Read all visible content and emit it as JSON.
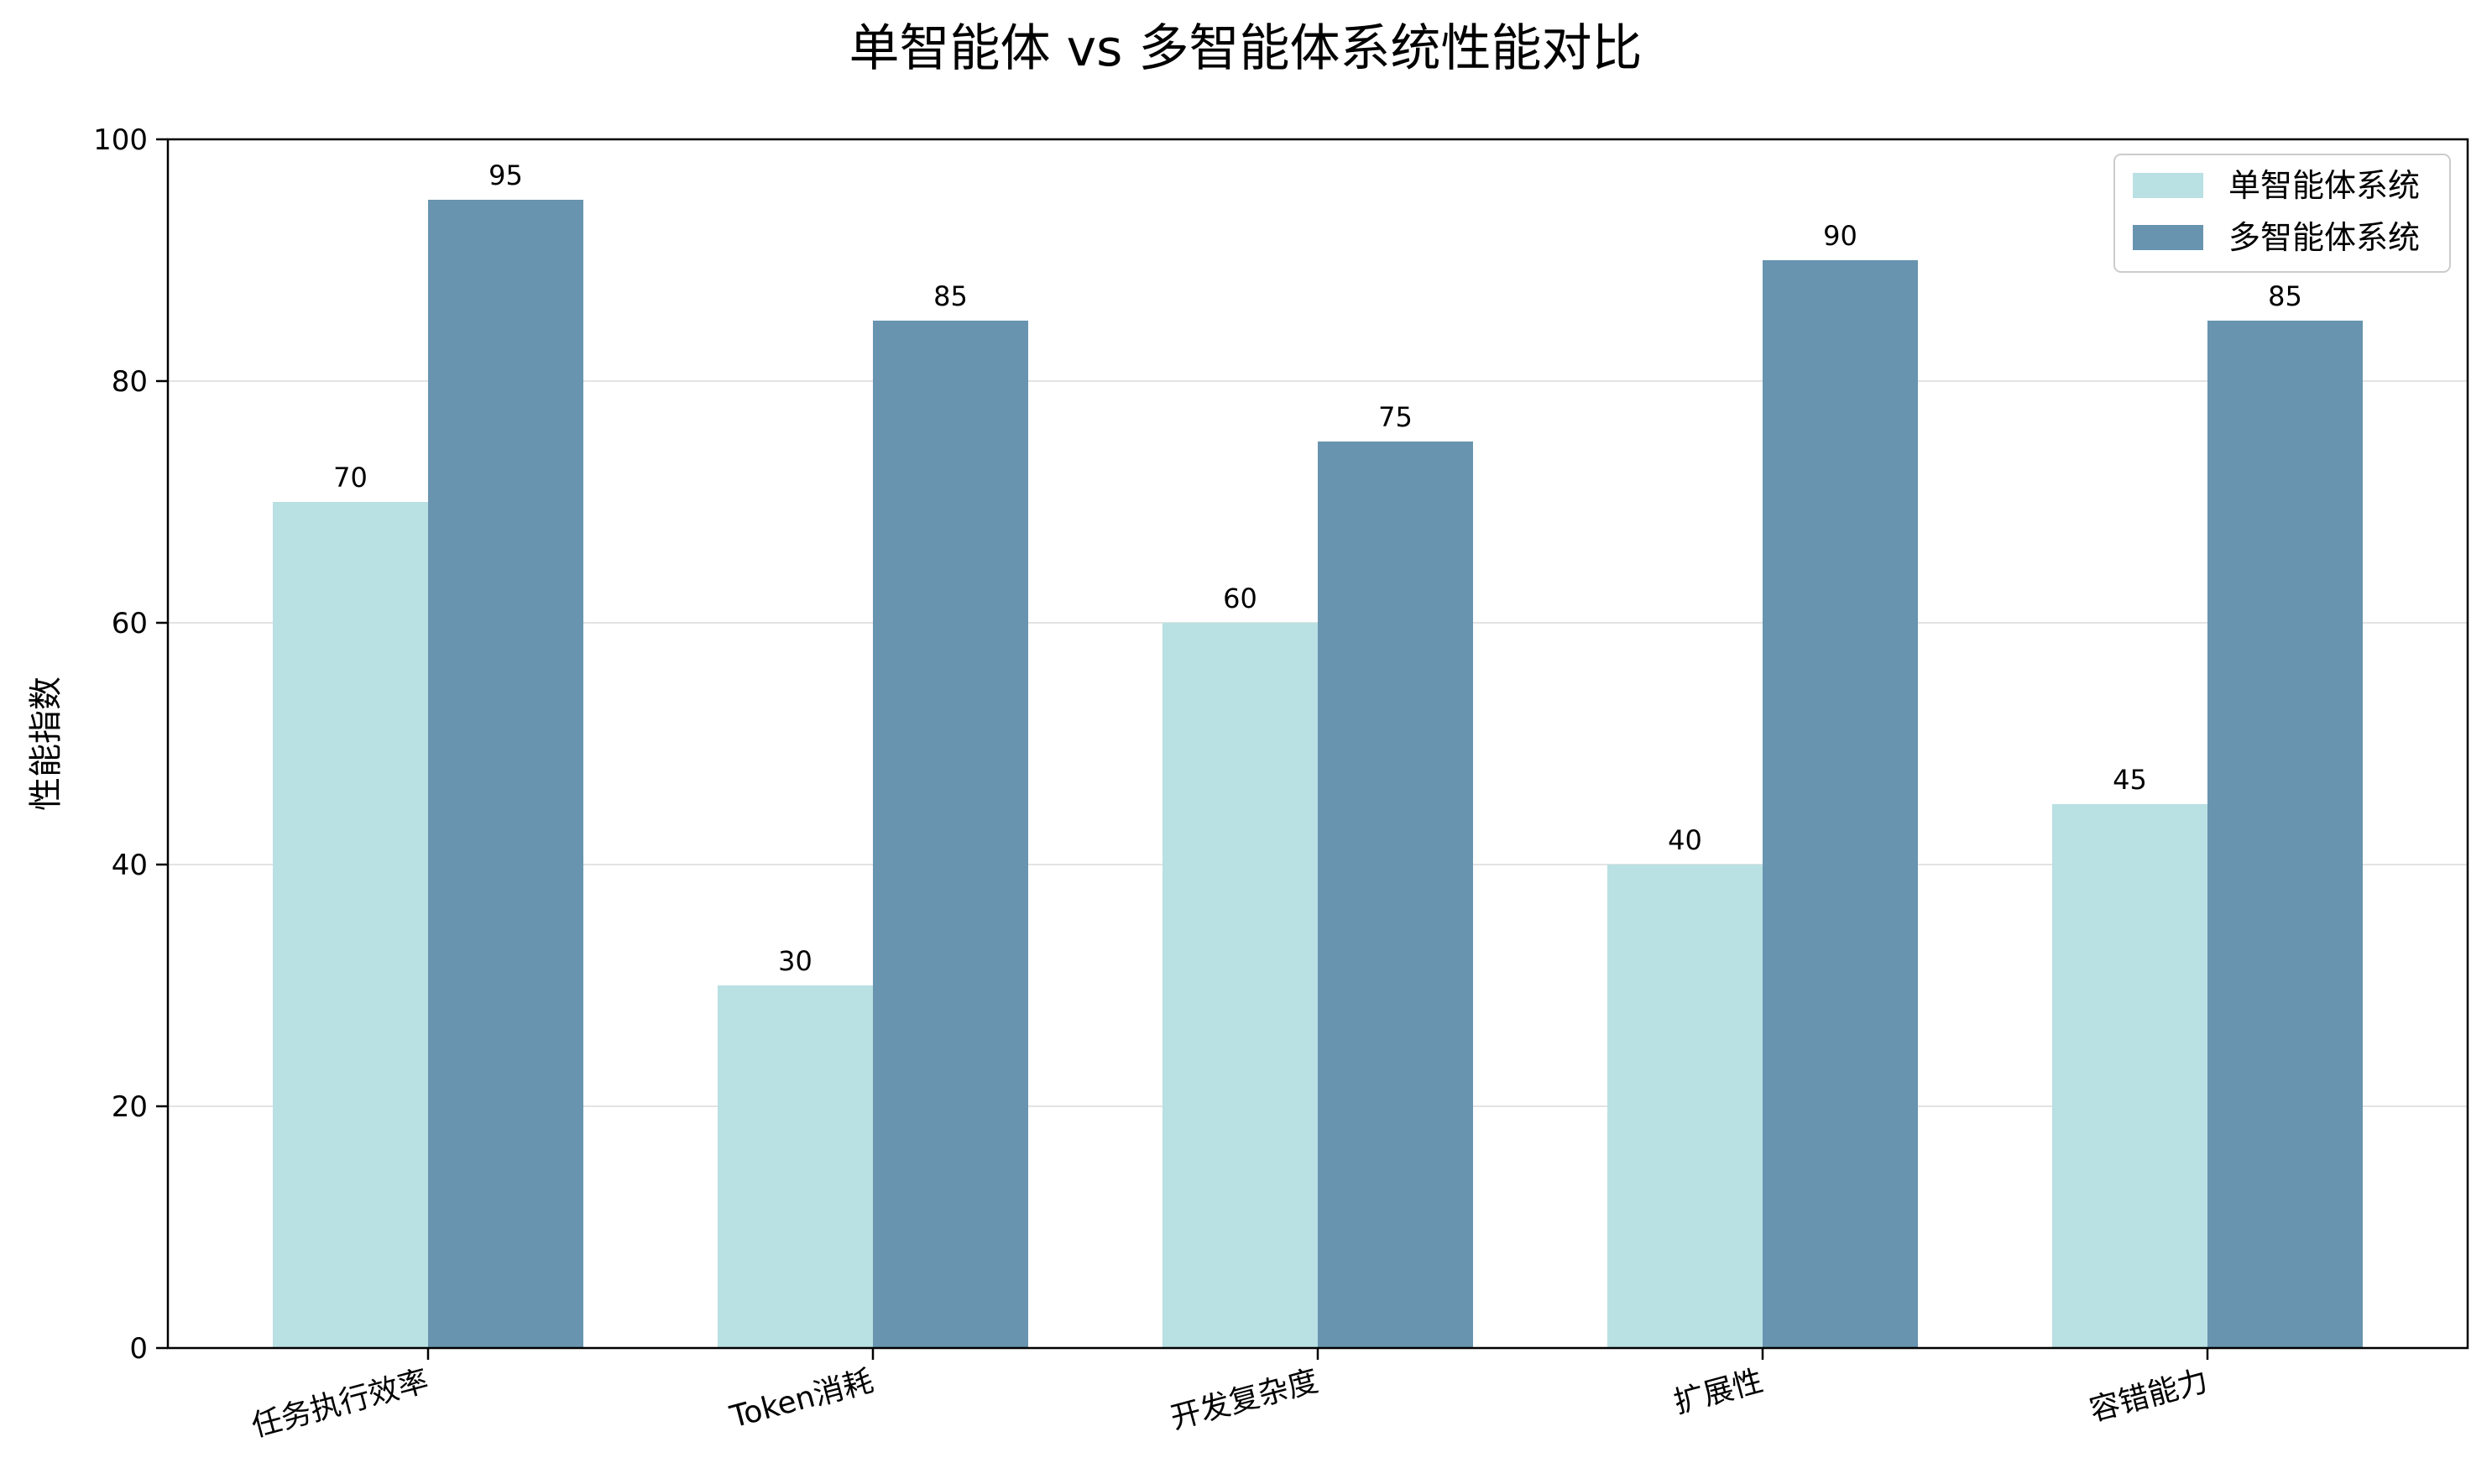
{
  "chart_data": {
    "type": "bar",
    "title": "单智能体 vs 多智能体系统性能对比",
    "xlabel": "",
    "ylabel": "性能指数",
    "ylim": [
      0,
      100
    ],
    "yticks": [
      0,
      20,
      40,
      60,
      80,
      100
    ],
    "grid": "y",
    "legend_position": "top-right",
    "categories": [
      "任务执行效率",
      "Token消耗",
      "开发复杂度",
      "扩展性",
      "容错能力"
    ],
    "series": [
      {
        "name": "单智能体系统",
        "color": "#b9e0e3",
        "values": [
          70,
          30,
          60,
          40,
          45
        ]
      },
      {
        "name": "多智能体系统",
        "color": "#6894af",
        "values": [
          95,
          85,
          75,
          90,
          85
        ]
      }
    ],
    "data_labels": true
  }
}
